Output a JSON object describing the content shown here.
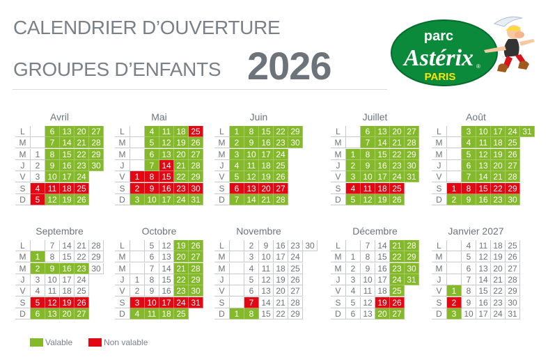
{
  "header": {
    "line1": "CALENDRIER D’OUVERTURE",
    "line2": "GROUPES D’ENFANTS",
    "year": "2026"
  },
  "logo": {
    "top": "parc",
    "name": "Astérix",
    "city": "PARIS",
    "mark": "®"
  },
  "colors": {
    "valable": "#84b92a",
    "non_valable": "#e30613",
    "text": "#6d737a",
    "logo_green": "#0a8a3a",
    "logo_yellow": "#ffe600"
  },
  "weekdays": [
    "L",
    "M",
    "M",
    "J",
    "V",
    "S",
    "D"
  ],
  "legend": [
    {
      "label": "Valable",
      "status": "v"
    },
    {
      "label": "Non valable",
      "status": "n"
    }
  ],
  "status_codes": {
    "v": "Valable",
    "n": "Non valable"
  },
  "months": [
    {
      "name": "Avril",
      "weeks": [
        [
          "",
          "",
          "1",
          "2",
          "3",
          "4n",
          "5n"
        ],
        [
          "6v",
          "7v",
          "8v",
          "9v",
          "10v",
          "11n",
          "12v"
        ],
        [
          "13v",
          "14v",
          "15v",
          "16v",
          "17v",
          "18n",
          "19v"
        ],
        [
          "20v",
          "21v",
          "22v",
          "23v",
          "24v",
          "25n",
          "26v"
        ],
        [
          "27v",
          "28v",
          "29v",
          "30v"
        ]
      ]
    },
    {
      "name": "Mai",
      "weeks": [
        [
          "",
          "",
          "",
          "",
          "1n",
          "2n",
          "3v"
        ],
        [
          "4v",
          "5v",
          "6v",
          "7v",
          "8n",
          "9n",
          "10v"
        ],
        [
          "11v",
          "12v",
          "13v",
          "14n",
          "15n",
          "16n",
          "17v"
        ],
        [
          "18v",
          "19v",
          "20v",
          "21v",
          "22v",
          "23n",
          "24v"
        ],
        [
          "25n",
          "26v",
          "27v",
          "28v",
          "29v",
          "30n",
          "31v"
        ]
      ]
    },
    {
      "name": "Juin",
      "weeks": [
        [
          "1v",
          "2v",
          "3v",
          "4v",
          "5v",
          "6n",
          "7v"
        ],
        [
          "8v",
          "9v",
          "10v",
          "11v",
          "12v",
          "13n",
          "14v"
        ],
        [
          "15v",
          "16v",
          "17v",
          "18v",
          "19v",
          "20n",
          "21v"
        ],
        [
          "22v",
          "23v",
          "24v",
          "25v",
          "26v",
          "27n",
          "28v"
        ],
        [
          "29v",
          "30v"
        ]
      ]
    },
    {
      "name": "Juillet",
      "weeks": [
        [
          "",
          "",
          "1v",
          "2v",
          "3v",
          "4n",
          "5v"
        ],
        [
          "6v",
          "7v",
          "8v",
          "9v",
          "10v",
          "11n",
          "12v"
        ],
        [
          "13v",
          "14v",
          "15v",
          "16v",
          "17v",
          "18n",
          "19v"
        ],
        [
          "20v",
          "21v",
          "22v",
          "23v",
          "24v",
          "25n",
          "26v"
        ],
        [
          "27v",
          "28v",
          "29v",
          "30v",
          "31v"
        ]
      ]
    },
    {
      "name": "Août",
      "weeks": [
        [
          "",
          "",
          "",
          "",
          "",
          "1n",
          "2v"
        ],
        [
          "3v",
          "4v",
          "5v",
          "6v",
          "7v",
          "8n",
          "9v"
        ],
        [
          "10v",
          "11v",
          "12v",
          "13v",
          "14v",
          "15n",
          "16v"
        ],
        [
          "17v",
          "18v",
          "19v",
          "20v",
          "21v",
          "22n",
          "23v"
        ],
        [
          "24v",
          "25v",
          "26v",
          "27v",
          "28v",
          "29n",
          "30v"
        ],
        [
          "31v"
        ]
      ]
    },
    {
      "name": "Septembre",
      "weeks": [
        [
          "",
          "1v",
          "2v",
          "3",
          "4",
          "5n",
          "6v"
        ],
        [
          "7",
          "8",
          "9v",
          "10",
          "11",
          "12n",
          "13v"
        ],
        [
          "14",
          "15",
          "16v",
          "17",
          "18",
          "19n",
          "20v"
        ],
        [
          "21",
          "22",
          "23v",
          "24",
          "25",
          "26n",
          "27v"
        ],
        [
          "28",
          "29",
          "30"
        ]
      ]
    },
    {
      "name": "Octobre",
      "weeks": [
        [
          "",
          "",
          "",
          "1",
          "2",
          "3n",
          "4v"
        ],
        [
          "5",
          "6",
          "7",
          "8",
          "9",
          "10n",
          "11v"
        ],
        [
          "12",
          "13",
          "14",
          "15",
          "16",
          "17n",
          "18v"
        ],
        [
          "19v",
          "20v",
          "21v",
          "22v",
          "23v",
          "24n",
          "25v"
        ],
        [
          "26v",
          "27v",
          "28v",
          "29v",
          "30v",
          "31n"
        ]
      ]
    },
    {
      "name": "Novembre",
      "weeks": [
        [
          "",
          "",
          "",
          "",
          "",
          "",
          "1v"
        ],
        [
          "2",
          "3",
          "4",
          "5",
          "6",
          "7n",
          "8v"
        ],
        [
          "9",
          "10",
          "11",
          "12",
          "13",
          "14",
          "15"
        ],
        [
          "16",
          "17",
          "18",
          "19",
          "20",
          "21",
          "22"
        ],
        [
          "23",
          "24",
          "25",
          "26",
          "27",
          "28",
          "29"
        ],
        [
          "30"
        ]
      ]
    },
    {
      "name": "Décembre",
      "weeks": [
        [
          "",
          "1",
          "2",
          "3",
          "4",
          "5",
          "6"
        ],
        [
          "7",
          "8",
          "9",
          "10",
          "11",
          "12",
          "13"
        ],
        [
          "14",
          "15",
          "16",
          "17",
          "18",
          "19n",
          "20v"
        ],
        [
          "21v",
          "22v",
          "23v",
          "24v",
          "25v",
          "26n",
          "27v"
        ],
        [
          "28v",
          "29v",
          "30v",
          "31v"
        ]
      ]
    },
    {
      "name": "Janvier 2027",
      "weeks": [
        [
          "",
          "",
          "",
          "",
          "1v",
          "2n",
          "3v"
        ],
        [
          "4",
          "5",
          "6",
          "7",
          "8",
          "9",
          "10"
        ],
        [
          "11",
          "12",
          "13",
          "14",
          "15",
          "16",
          "17"
        ],
        [
          "18",
          "19",
          "20",
          "21",
          "22",
          "23",
          "24"
        ],
        [
          "25",
          "26",
          "27",
          "28",
          "29",
          "30",
          "31"
        ]
      ]
    }
  ]
}
